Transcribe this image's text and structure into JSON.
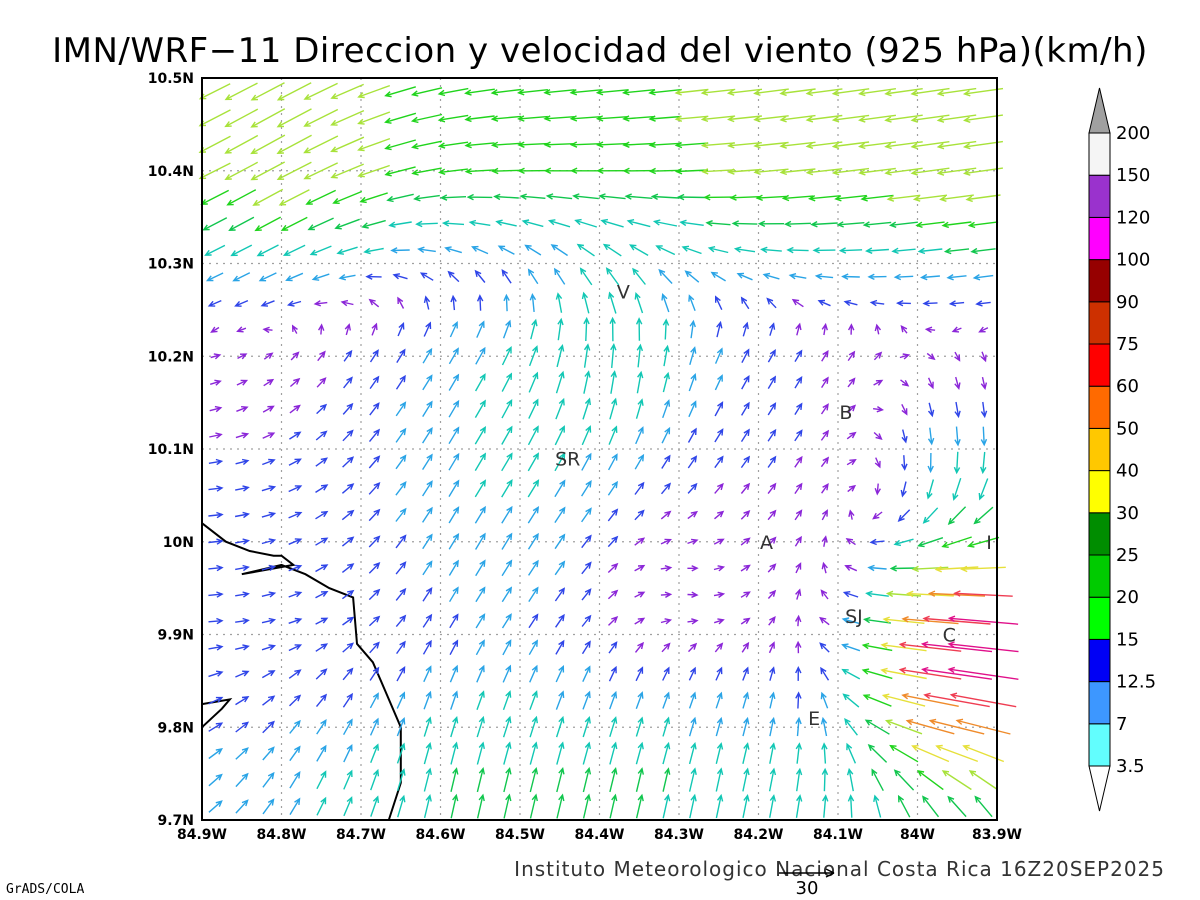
{
  "title": "IMN/WRF−11 Direccion y velocidad del viento (925 hPa)(km/h)",
  "footer": "Instituto Meteorologico Nacional Costa Rica 16Z20SEP2025",
  "credit": "GrADS/COLA",
  "reference_vector": {
    "label": "30",
    "speed": 30
  },
  "map": {
    "lon_range": [
      -84.9,
      -83.9
    ],
    "lat_range": [
      9.7,
      10.5
    ],
    "grid": true,
    "x_ticks": [
      {
        "lon": -84.9,
        "label": "84.9W"
      },
      {
        "lon": -84.8,
        "label": "84.8W"
      },
      {
        "lon": -84.7,
        "label": "84.7W"
      },
      {
        "lon": -84.6,
        "label": "84.6W"
      },
      {
        "lon": -84.5,
        "label": "84.5W"
      },
      {
        "lon": -84.4,
        "label": "84.4W"
      },
      {
        "lon": -84.3,
        "label": "84.3W"
      },
      {
        "lon": -84.2,
        "label": "84.2W"
      },
      {
        "lon": -84.1,
        "label": "84.1W"
      },
      {
        "lon": -84.0,
        "label": "84W"
      },
      {
        "lon": -83.9,
        "label": "83.9W"
      }
    ],
    "y_ticks": [
      {
        "lat": 10.5,
        "label": "10.5N"
      },
      {
        "lat": 10.4,
        "label": "10.4N"
      },
      {
        "lat": 10.3,
        "label": "10.3N"
      },
      {
        "lat": 10.2,
        "label": "10.2N"
      },
      {
        "lat": 10.1,
        "label": "10.1N"
      },
      {
        "lat": 10.0,
        "label": "10N"
      },
      {
        "lat": 9.9,
        "label": "9.9N"
      },
      {
        "lat": 9.8,
        "label": "9.8N"
      },
      {
        "lat": 9.7,
        "label": "9.7N"
      }
    ],
    "places": [
      {
        "label": "V",
        "lon": -84.37,
        "lat": 10.27
      },
      {
        "label": "B",
        "lon": -84.09,
        "lat": 10.14
      },
      {
        "label": "SR",
        "lon": -84.44,
        "lat": 10.09
      },
      {
        "label": "A",
        "lon": -84.19,
        "lat": 10.0
      },
      {
        "label": "I",
        "lon": -83.91,
        "lat": 10.0
      },
      {
        "label": "SJ",
        "lon": -84.08,
        "lat": 9.92
      },
      {
        "label": "C",
        "lon": -83.96,
        "lat": 9.9
      },
      {
        "label": "E",
        "lon": -84.13,
        "lat": 9.81
      }
    ],
    "coastline": [
      [
        [
          -84.9,
          10.02
        ],
        [
          -84.87,
          10.0
        ],
        [
          -84.84,
          9.99
        ],
        [
          -84.81,
          9.985
        ],
        [
          -84.8,
          9.985
        ],
        [
          -84.785,
          9.975
        ],
        [
          -84.85,
          9.965
        ],
        [
          -84.8,
          9.975
        ],
        [
          -84.77,
          9.965
        ],
        [
          -84.74,
          9.95
        ],
        [
          -84.71,
          9.94
        ],
        [
          -84.705,
          9.89
        ],
        [
          -84.685,
          9.87
        ],
        [
          -84.67,
          9.84
        ],
        [
          -84.65,
          9.8
        ],
        [
          -84.65,
          9.77
        ],
        [
          -84.65,
          9.74
        ],
        [
          -84.665,
          9.7
        ]
      ],
      [
        [
          -84.9,
          9.8
        ],
        [
          -84.875,
          9.82
        ],
        [
          -84.865,
          9.83
        ],
        [
          -84.9,
          9.825
        ]
      ]
    ]
  },
  "colors": {
    "frame": "#000000",
    "grid": "#a0a0a0",
    "coastline": "#000000"
  },
  "legend": {
    "colors": [
      "#62fefe",
      "#3d97ff",
      "#0000f5",
      "#00ff00",
      "#00cb00",
      "#008d00",
      "#ffff00",
      "#ffc800",
      "#ff6a00",
      "#ff0000",
      "#cd3000",
      "#960000",
      "#ff00ff",
      "#9a32cd",
      "#f5f5f5"
    ],
    "labels": [
      "3.5",
      "7",
      "12.5",
      "15",
      "20",
      "25",
      "30",
      "40",
      "50",
      "60",
      "75",
      "90",
      "100",
      "120",
      "150",
      "200"
    ],
    "under_color": "#ffffff",
    "over_color": "#a0a0a0"
  },
  "wind_colors": {
    "violet": "#8b26d8",
    "blue": "#2f45e8",
    "sky": "#2aa4e6",
    "teal": "#12c7b4",
    "green": "#11c64e",
    "bright_green": "#20d41c",
    "lime": "#a8e23a",
    "yellow": "#e6e03a",
    "orange": "#ef8b2b",
    "red": "#ef3d52",
    "magenta": "#e0108a"
  }
}
